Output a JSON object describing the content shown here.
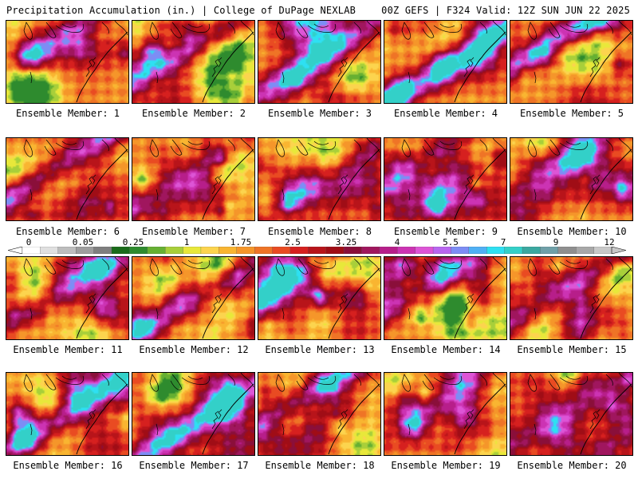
{
  "header": {
    "title": "Precipitation Accumulation (in.) | College of DuPage NEXLAB",
    "valid": "00Z GEFS | F324 Valid: 12Z SUN JUN 22 2025"
  },
  "colorbar": {
    "tick_labels": [
      "0",
      "0.05",
      "0.25",
      "1",
      "1.75",
      "2.5",
      "3.25",
      "4",
      "5.5",
      "7",
      "9",
      "12"
    ],
    "colors": [
      "#ffffff",
      "#e0e0e0",
      "#bdbdbd",
      "#9e9e9e",
      "#7f7f7f",
      "#1a6b1a",
      "#2e8b2e",
      "#66b032",
      "#a8cf3a",
      "#e8e83a",
      "#fcd44e",
      "#f9b531",
      "#f5962a",
      "#ef7426",
      "#e94b22",
      "#d6201f",
      "#b8141a",
      "#a00d16",
      "#8a0f3a",
      "#a0165e",
      "#b71e8a",
      "#cc33b3",
      "#dd55d6",
      "#b866f0",
      "#7d8df5",
      "#4fb0f5",
      "#2ee0f2",
      "#33d0c8",
      "#3aa8a0",
      "#6fa0a8",
      "#8f8f8f",
      "#a8a8a8",
      "#c8c8c8"
    ]
  },
  "members": [
    {
      "label": "Ensemble Member: 1"
    },
    {
      "label": "Ensemble Member: 2"
    },
    {
      "label": "Ensemble Member: 3"
    },
    {
      "label": "Ensemble Member: 4"
    },
    {
      "label": "Ensemble Member: 5"
    },
    {
      "label": "Ensemble Member: 6"
    },
    {
      "label": "Ensemble Member: 7"
    },
    {
      "label": "Ensemble Member: 8"
    },
    {
      "label": "Ensemble Member: 9"
    },
    {
      "label": "Ensemble Member: 10"
    },
    {
      "label": "Ensemble Member: 11"
    },
    {
      "label": "Ensemble Member: 12"
    },
    {
      "label": "Ensemble Member: 13"
    },
    {
      "label": "Ensemble Member: 14"
    },
    {
      "label": "Ensemble Member: 15"
    },
    {
      "label": "Ensemble Member: 16"
    },
    {
      "label": "Ensemble Member: 17"
    },
    {
      "label": "Ensemble Member: 18"
    },
    {
      "label": "Ensemble Member: 19"
    },
    {
      "label": "Ensemble Member: 20"
    }
  ]
}
